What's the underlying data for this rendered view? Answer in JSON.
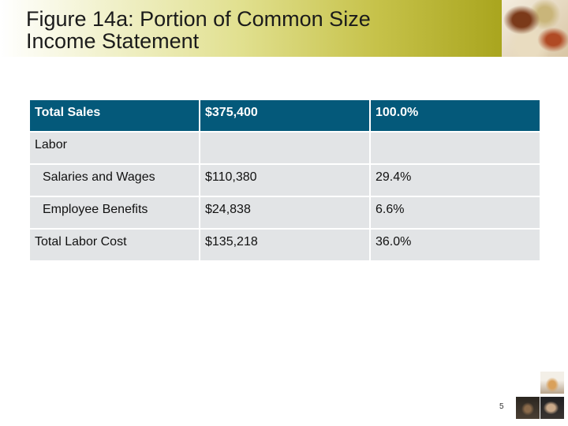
{
  "slide": {
    "title_line1": "Figure 14a: Portion of Common Size",
    "title_line2": "Income Statement",
    "page_number": "5"
  },
  "table": {
    "rows": [
      {
        "label": "Total Sales",
        "amount": "$375,400",
        "percent": "100.0%"
      },
      {
        "label": "Labor",
        "amount": "",
        "percent": ""
      },
      {
        "label": "Salaries and Wages",
        "amount": "$110,380",
        "percent": "29.4%"
      },
      {
        "label": "Employee Benefits",
        "amount": "$24,838",
        "percent": "6.6%"
      },
      {
        "label": "Total Labor Cost",
        "amount": "$135,218",
        "percent": "36.0%"
      }
    ]
  },
  "colors": {
    "header_row": "#04597a",
    "body_cell": "#e2e4e6",
    "title_band_end": "#a9a51e"
  }
}
